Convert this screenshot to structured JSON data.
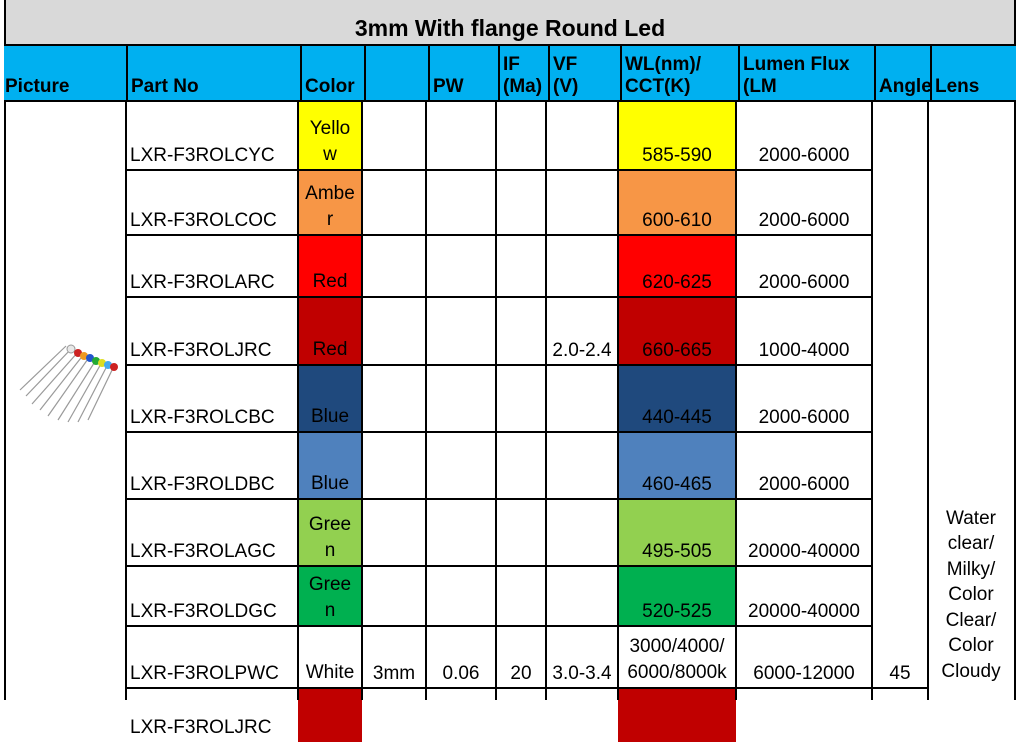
{
  "title": "3mm With flange Round Led",
  "headers": {
    "picture": "Picture",
    "part_no": "Part No",
    "color": "Color",
    "blank": "",
    "pw": "PW",
    "if_ma": "IF\n(Ma)",
    "vf_v": "VF\n(V)",
    "wl_cct": "WL(nm)/\nCCT(K)",
    "lumen_flux": "Lumen Flux\n(LM",
    "angle": "Angle",
    "lens": "Lens"
  },
  "rows": [
    {
      "part_no": "LXR-F3ROLCYC",
      "color_line1": "Yello",
      "color_line2": "w",
      "wl": "585-590",
      "lumen": "2000-6000",
      "color_hex": "#ffff00"
    },
    {
      "part_no": "LXR-F3ROLCOC",
      "color_line1": "Ambe",
      "color_line2": "r",
      "wl": "600-610",
      "lumen": "2000-6000",
      "color_hex": "#f79646"
    },
    {
      "part_no": "LXR-F3ROLARC",
      "color_line1": "",
      "color_line2": "Red",
      "wl": "620-625",
      "lumen": "2000-6000",
      "color_hex": "#ff0000"
    },
    {
      "part_no": "LXR-F3ROLJRC",
      "color_line1": "",
      "color_line2": "Red",
      "wl": "660-665",
      "lumen": "1000-4000",
      "color_hex": "#c00000"
    },
    {
      "part_no": "LXR-F3ROLCBC",
      "color_line1": "",
      "color_line2": "Blue",
      "wl": "440-445",
      "lumen": "2000-6000",
      "color_hex": "#1f497d"
    },
    {
      "part_no": "LXR-F3ROLDBC",
      "color_line1": "",
      "color_line2": "Blue",
      "wl": "460-465",
      "lumen": "2000-6000",
      "color_hex": "#4f81bd"
    },
    {
      "part_no": "LXR-F3ROLAGC",
      "color_line1": "Gree",
      "color_line2": "n",
      "wl": "495-505",
      "lumen": "20000-40000",
      "color_hex": "#92d050"
    },
    {
      "part_no": "LXR-F3ROLDGC",
      "color_line1": "Gree",
      "color_line2": "n",
      "wl": "520-525",
      "lumen": "20000-40000",
      "color_hex": "#00b050"
    },
    {
      "part_no": "LXR-F3ROLPWC",
      "color_line1": "",
      "color_line2": "White",
      "wl_line1": "3000/4000/",
      "wl_line2": "6000/8000k",
      "lumen": "6000-12000",
      "color_hex": "#ffffff"
    },
    {
      "part_no": "LXR-F3ROLJRC",
      "color_hex": "#c00000"
    }
  ],
  "shared": {
    "size": "3mm",
    "pw": "0.06",
    "if": "20",
    "vf_red": "2.0-2.4",
    "vf_other": "3.0-3.4",
    "angle": "45",
    "lens": "Water\nclear/\nMilky/\nColor\nClear/\nColor\nCloudy"
  },
  "picture_icon": "led-bundle-image",
  "colors": {
    "title_bg": "#d9d9d9",
    "header_bg": "#00b0f0"
  }
}
